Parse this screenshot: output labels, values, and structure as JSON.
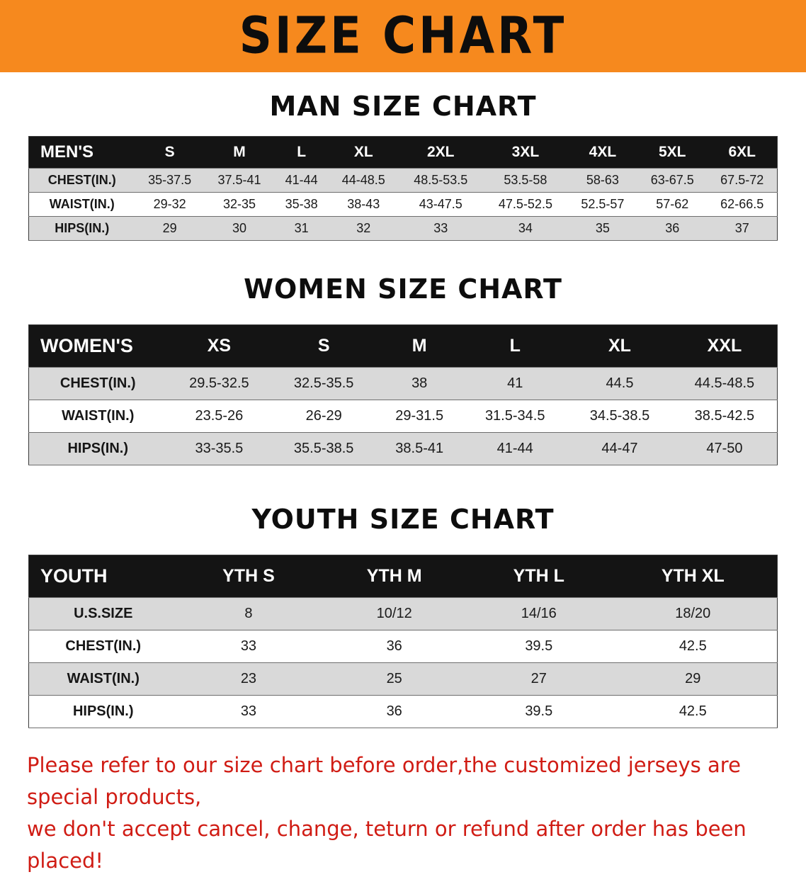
{
  "banner": {
    "title": "SIZE CHART"
  },
  "chart_data": [
    {
      "type": "table",
      "title": "MAN SIZE CHART",
      "header": [
        "MEN'S",
        "S",
        "M",
        "L",
        "XL",
        "2XL",
        "3XL",
        "4XL",
        "5XL",
        "6XL"
      ],
      "rows": [
        [
          "CHEST(IN.)",
          "35-37.5",
          "37.5-41",
          "41-44",
          "44-48.5",
          "48.5-53.5",
          "53.5-58",
          "58-63",
          "63-67.5",
          "67.5-72"
        ],
        [
          "WAIST(IN.)",
          "29-32",
          "32-35",
          "35-38",
          "38-43",
          "43-47.5",
          "47.5-52.5",
          "52.5-57",
          "57-62",
          "62-66.5"
        ],
        [
          "HIPS(IN.)",
          "29",
          "30",
          "31",
          "32",
          "33",
          "34",
          "35",
          "36",
          "37"
        ]
      ]
    },
    {
      "type": "table",
      "title": "WOMEN SIZE CHART",
      "header": [
        "WOMEN'S",
        "XS",
        "S",
        "M",
        "L",
        "XL",
        "XXL"
      ],
      "rows": [
        [
          "CHEST(IN.)",
          "29.5-32.5",
          "32.5-35.5",
          "38",
          "41",
          "44.5",
          "44.5-48.5"
        ],
        [
          "WAIST(IN.)",
          "23.5-26",
          "26-29",
          "29-31.5",
          "31.5-34.5",
          "34.5-38.5",
          "38.5-42.5"
        ],
        [
          "HIPS(IN.)",
          "33-35.5",
          "35.5-38.5",
          "38.5-41",
          "41-44",
          "44-47",
          "47-50"
        ]
      ]
    },
    {
      "type": "table",
      "title": "YOUTH SIZE CHART",
      "header": [
        "YOUTH",
        "YTH S",
        "YTH M",
        "YTH L",
        "YTH XL"
      ],
      "rows": [
        [
          "U.S.SIZE",
          "8",
          "10/12",
          "14/16",
          "18/20"
        ],
        [
          "CHEST(IN.)",
          "33",
          "36",
          "39.5",
          "42.5"
        ],
        [
          "WAIST(IN.)",
          "23",
          "25",
          "27",
          "29"
        ],
        [
          "HIPS(IN.)",
          "33",
          "36",
          "39.5",
          "42.5"
        ]
      ]
    }
  ],
  "footer": {
    "line1": "Please refer to our size chart before order,the customized jerseys are special products,",
    "line2": "we don't accept cancel, change, teturn or refund after order has been placed!"
  },
  "colors": {
    "banner_bg": "#f6891e",
    "table_header_bg": "#141414",
    "row_alt_bg": "#d9d9d9",
    "note_color": "#d01c14"
  }
}
